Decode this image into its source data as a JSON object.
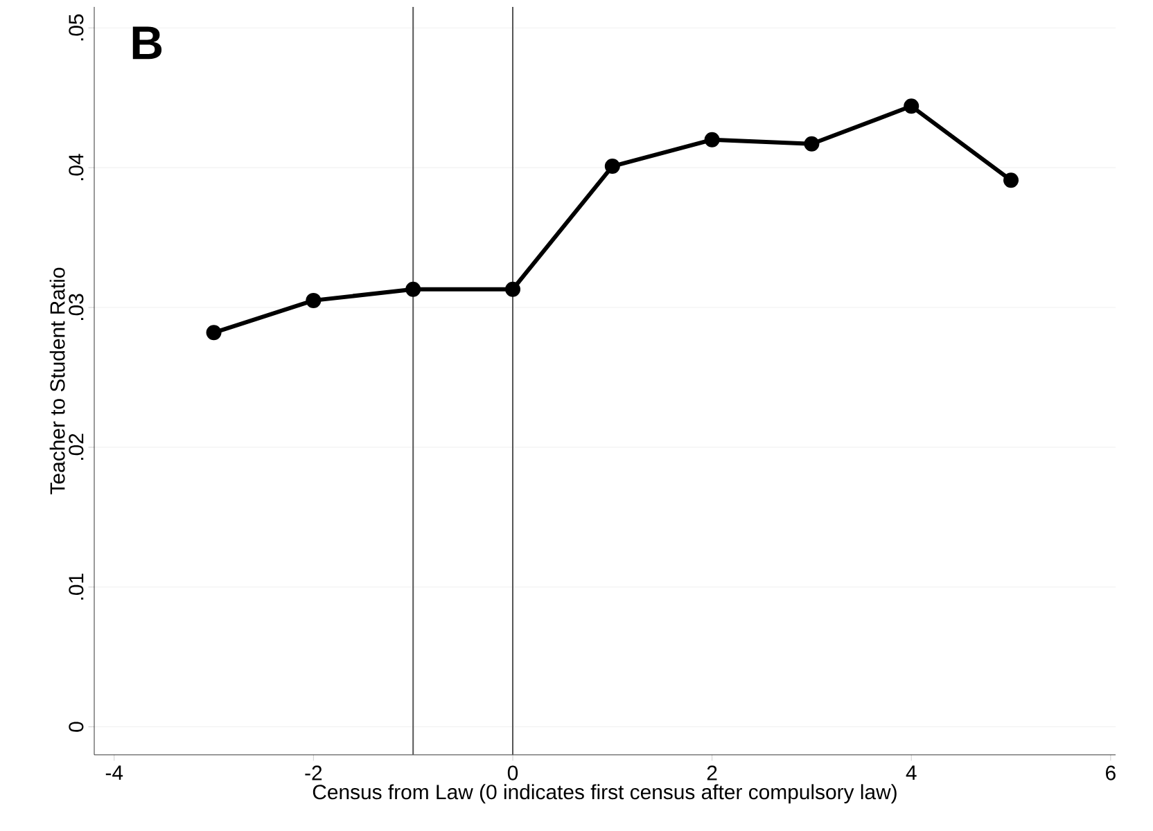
{
  "chart_data": {
    "type": "line",
    "xlabel": "Census from Law (0 indicates first census after compulsory law)",
    "ylabel": "Teacher to Student Ratio",
    "annotations": [
      "B"
    ],
    "x": [
      -3,
      -2,
      -1,
      0,
      1,
      2,
      3,
      4,
      5
    ],
    "series": [
      {
        "color": "#000000",
        "values": [
          0.0282,
          0.0305,
          0.0313,
          0.0313,
          0.0401,
          0.042,
          0.0417,
          0.0444,
          0.0391
        ]
      }
    ],
    "xlim": [
      -4.2,
      6.05
    ],
    "ylim": [
      -0.002,
      0.0515
    ],
    "xticks": [
      -4,
      -2,
      0,
      2,
      4,
      6
    ],
    "yticks": [
      {
        "value": 0,
        "label": "0"
      },
      {
        "value": 0.01,
        "label": ".01"
      },
      {
        "value": 0.02,
        "label": ".02"
      },
      {
        "value": 0.03,
        "label": ".03"
      },
      {
        "value": 0.04,
        "label": ".04"
      },
      {
        "value": 0.05,
        "label": ".05"
      }
    ],
    "ref_lines": [
      {
        "axis": "x",
        "value": -1,
        "color": "#555555"
      },
      {
        "axis": "x",
        "value": 0,
        "color": "#555555"
      }
    ],
    "grid": "y",
    "marker": "circle",
    "line_style": "solid"
  }
}
